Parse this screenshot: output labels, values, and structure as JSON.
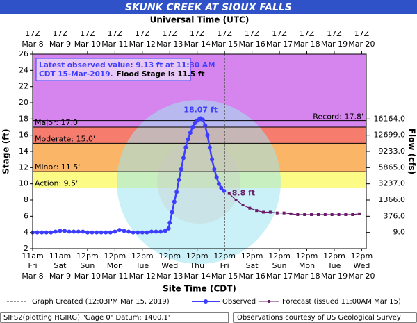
{
  "chart_data": {
    "type": "line",
    "title": "SKUNK CREEK AT SIOUX FALLS",
    "top_axis_label": "Universal Time (UTC)",
    "xlabel": "Site Time (CDT)",
    "ylabel": "Stage (ft)",
    "y2label": "Flow (cfs)",
    "xlim": [
      0,
      292
    ],
    "ylim": [
      2,
      26
    ],
    "yticks": [
      2,
      4,
      6,
      8,
      10,
      12,
      14,
      16,
      18,
      20,
      22,
      24,
      26
    ],
    "y2ticks": [
      {
        "value": 16164.0,
        "label": "16164.0",
        "stage": 18
      },
      {
        "value": 12699.0,
        "label": "12699.0",
        "stage": 16
      },
      {
        "value": 9233.0,
        "label": "9233.0",
        "stage": 14
      },
      {
        "value": 5865.0,
        "label": "5865.0",
        "stage": 12
      },
      {
        "value": 3237.0,
        "label": "3237.0",
        "stage": 10
      },
      {
        "value": 1366.0,
        "label": "1366.0",
        "stage": 8
      },
      {
        "value": 376.0,
        "label": "376.0",
        "stage": 6
      },
      {
        "value": 9.0,
        "label": "9.0",
        "stage": 4
      }
    ],
    "xticks": [
      {
        "value": 0,
        "time": "11am",
        "day": "Fri",
        "date": "Mar 8"
      },
      {
        "value": 24,
        "time": "11am",
        "day": "Sat",
        "date": "Mar 9"
      },
      {
        "value": 48,
        "time": "12pm",
        "day": "Sun",
        "date": "Mar 10"
      },
      {
        "value": 72,
        "time": "12pm",
        "day": "Mon",
        "date": "Mar 11"
      },
      {
        "value": 96,
        "time": "12pm",
        "day": "Tue",
        "date": "Mar 12"
      },
      {
        "value": 120,
        "time": "12pm",
        "day": "Wed",
        "date": "Mar 13"
      },
      {
        "value": 144,
        "time": "12pm",
        "day": "Thu",
        "date": "Mar 14"
      },
      {
        "value": 168,
        "time": "12pm",
        "day": "Fri",
        "date": "Mar 15"
      },
      {
        "value": 192,
        "time": "12pm",
        "day": "Sat",
        "date": "Mar 16"
      },
      {
        "value": 216,
        "time": "12pm",
        "day": "Sun",
        "date": "Mar 17"
      },
      {
        "value": 240,
        "time": "12pm",
        "day": "Mon",
        "date": "Mar 18"
      },
      {
        "value": 264,
        "time": "12pm",
        "day": "Tue",
        "date": "Mar 19"
      },
      {
        "value": 288,
        "time": "12pm",
        "day": "Wed",
        "date": "Mar 20"
      }
    ],
    "top_ticks": [
      {
        "value": 0,
        "label": "17Z",
        "date": "Mar 8"
      },
      {
        "value": 24,
        "label": "17Z",
        "date": "Mar 9"
      },
      {
        "value": 48,
        "label": "17Z",
        "date": "Mar 10"
      },
      {
        "value": 72,
        "label": "17Z",
        "date": "Mar 11"
      },
      {
        "value": 96,
        "label": "17Z",
        "date": "Mar 12"
      },
      {
        "value": 120,
        "label": "17Z",
        "date": "Mar 13"
      },
      {
        "value": 144,
        "label": "17Z",
        "date": "Mar 14"
      },
      {
        "value": 168,
        "label": "17Z",
        "date": "Mar 15"
      },
      {
        "value": 192,
        "label": "17Z",
        "date": "Mar 16"
      },
      {
        "value": 216,
        "label": "17Z",
        "date": "Mar 17"
      },
      {
        "value": 240,
        "label": "17Z",
        "date": "Mar 18"
      },
      {
        "value": 264,
        "label": "17Z",
        "date": "Mar 19"
      },
      {
        "value": 288,
        "label": "17Z",
        "date": "Mar 20"
      }
    ],
    "flood_bands": [
      {
        "label": "Major: 17.0'",
        "value": 17.0,
        "color": "#d684ee"
      },
      {
        "label": "Moderate: 15.0'",
        "value": 15.0,
        "color": "#f67c6e"
      },
      {
        "label": "Minor: 11.5'",
        "value": 11.5,
        "color": "#fbb567"
      },
      {
        "label": "Action: 9.5'",
        "value": 9.5,
        "color": "#fbfb86"
      }
    ],
    "record": {
      "label": "Record: 17.8'",
      "value": 17.8
    },
    "info": [
      "Latest observed value: 9.13 ft at 11:30 AM",
      "CDT 15-Mar-2019.",
      "Flood Stage is 11.5 ft"
    ],
    "series": [
      {
        "name": "Observed",
        "color": "#3d3dff",
        "x": [
          0,
          4,
          8,
          12,
          16,
          20,
          24,
          28,
          32,
          36,
          40,
          44,
          48,
          52,
          56,
          60,
          64,
          68,
          72,
          76,
          80,
          84,
          88,
          92,
          96,
          100,
          104,
          108,
          112,
          116,
          119,
          120,
          122,
          124,
          126,
          128,
          130,
          132,
          134,
          136,
          138,
          140,
          142,
          144,
          146,
          147,
          149,
          151,
          153,
          155,
          157,
          159,
          161,
          163,
          165,
          167.5
        ],
        "values": [
          4.0,
          4.0,
          4.0,
          4.0,
          4.0,
          4.1,
          4.2,
          4.2,
          4.1,
          4.1,
          4.1,
          4.1,
          4.0,
          4.0,
          4.0,
          4.0,
          4.0,
          4.0,
          4.1,
          4.3,
          4.2,
          4.1,
          4.0,
          4.0,
          4.0,
          4.0,
          4.1,
          4.1,
          4.1,
          4.2,
          4.5,
          5.2,
          6.5,
          7.8,
          9.0,
          10.5,
          11.8,
          13.2,
          14.5,
          15.5,
          16.3,
          17.0,
          17.5,
          17.8,
          18.0,
          18.07,
          17.9,
          17.2,
          16.0,
          14.5,
          13.0,
          11.8,
          10.8,
          10.0,
          9.5,
          9.13
        ]
      },
      {
        "name": "Forecast (issued 11:00AM Mar 15)",
        "color": "#6a1a6a",
        "x": [
          172,
          178,
          184,
          190,
          196,
          202,
          208,
          214,
          220,
          226,
          232,
          238,
          244,
          250,
          256,
          262,
          268,
          274,
          280,
          286
        ],
        "values": [
          8.8,
          8.0,
          7.4,
          7.0,
          6.7,
          6.5,
          6.5,
          6.4,
          6.4,
          6.3,
          6.2,
          6.2,
          6.2,
          6.2,
          6.2,
          6.2,
          6.2,
          6.2,
          6.2,
          6.3
        ]
      }
    ],
    "annotations": [
      {
        "text": "18.07 ft",
        "x": 147,
        "y": 18.07
      },
      {
        "text": "8.8 ft",
        "x": 172,
        "y": 8.8
      }
    ],
    "created": {
      "label": "Graph Created (12:03PM Mar 15, 2019)",
      "x": 168.05
    },
    "footer_left": "SIFS2(plotting HGIRG) \"Gage 0\" Datum: 1400.1'",
    "footer_right": "Observations courtesy of US Geological Survey"
  }
}
